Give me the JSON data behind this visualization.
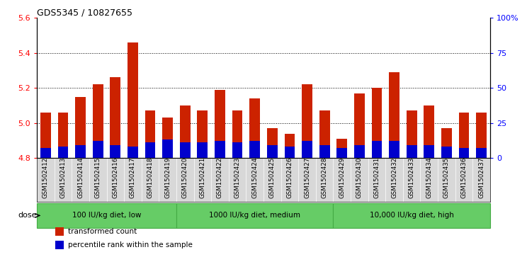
{
  "title": "GDS5345 / 10827655",
  "samples": [
    "GSM1502412",
    "GSM1502413",
    "GSM1502414",
    "GSM1502415",
    "GSM1502416",
    "GSM1502417",
    "GSM1502418",
    "GSM1502419",
    "GSM1502420",
    "GSM1502421",
    "GSM1502422",
    "GSM1502423",
    "GSM1502424",
    "GSM1502425",
    "GSM1502426",
    "GSM1502427",
    "GSM1502428",
    "GSM1502429",
    "GSM1502430",
    "GSM1502431",
    "GSM1502432",
    "GSM1502433",
    "GSM1502434",
    "GSM1502435",
    "GSM1502436",
    "GSM1502437"
  ],
  "red_values": [
    5.06,
    5.06,
    5.15,
    5.22,
    5.26,
    5.46,
    5.07,
    5.03,
    5.1,
    5.07,
    5.19,
    5.07,
    5.14,
    4.97,
    4.94,
    5.22,
    5.07,
    4.91,
    5.17,
    5.2,
    5.29,
    5.07,
    5.1,
    4.97,
    5.06,
    5.06
  ],
  "blue_pct": [
    7,
    8,
    9,
    12,
    9,
    8,
    11,
    13,
    11,
    11,
    12,
    11,
    12,
    9,
    8,
    12,
    9,
    7,
    9,
    12,
    12,
    9,
    9,
    8,
    7,
    7
  ],
  "base": 4.8,
  "ylim_left": [
    4.8,
    5.6
  ],
  "ylim_right": [
    0,
    100
  ],
  "yticks_left": [
    4.8,
    5.0,
    5.2,
    5.4,
    5.6
  ],
  "yticks_right": [
    0,
    25,
    50,
    75,
    100
  ],
  "ytick_labels_right": [
    "0",
    "25",
    "50",
    "75",
    "100%"
  ],
  "grid_lines": [
    5.0,
    5.2,
    5.4
  ],
  "dose_groups": [
    {
      "label": "100 IU/kg diet, low",
      "start": 0,
      "end": 8
    },
    {
      "label": "1000 IU/kg diet, medium",
      "start": 8,
      "end": 17
    },
    {
      "label": "10,000 IU/kg diet, high",
      "start": 17,
      "end": 26
    }
  ],
  "dose_label": "dose",
  "legend_items": [
    {
      "color": "#cc2200",
      "label": "transformed count"
    },
    {
      "color": "#0000cc",
      "label": "percentile rank within the sample"
    }
  ],
  "bar_color_red": "#cc2200",
  "bar_color_blue": "#0000cc",
  "plot_bg": "#ffffff",
  "tick_bg": "#d8d8d8",
  "green_color": "#66cc66",
  "green_border": "#44aa44"
}
